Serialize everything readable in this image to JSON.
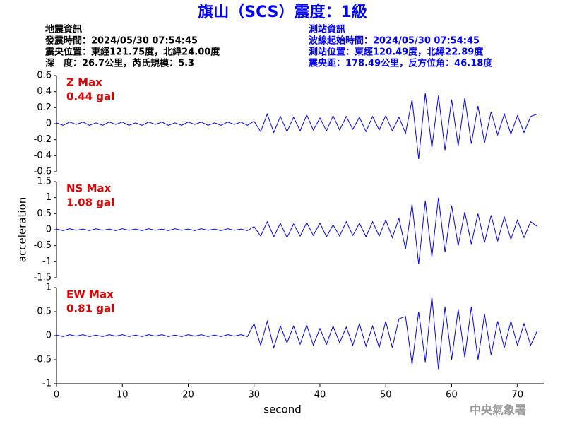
{
  "title": "旗山（SCS）震度：1級",
  "info_left": [
    "地震資訊",
    "發震時間：2024/05/30 07:54:45",
    "震央位置：東經121.75度，北緯24.00度",
    "深　度：26.7公里，芮氏規模：5.3"
  ],
  "info_right": [
    "測站資訊",
    "波線起始時間：2024/05/30 07:54:45",
    "測站位置：東經120.49度，北緯22.89度",
    "震央距：178.49公里，反方位角：46.18度"
  ],
  "footer": "中央氣象署",
  "chart_data": [
    {
      "type": "line",
      "annotations": [
        "Z Max",
        "0.44 gal"
      ],
      "xlim": [
        0,
        74
      ],
      "ylim": [
        -0.6,
        0.6
      ],
      "yticks": [
        0.6,
        0.4,
        0.2,
        0,
        -0.2,
        -0.4,
        -0.6
      ],
      "color": "#0000ff",
      "x": [
        0,
        1,
        2,
        3,
        4,
        5,
        6,
        7,
        8,
        9,
        10,
        11,
        12,
        13,
        14,
        15,
        16,
        17,
        18,
        19,
        20,
        21,
        22,
        23,
        24,
        25,
        26,
        27,
        28,
        29,
        30,
        31,
        32,
        33,
        34,
        35,
        36,
        37,
        38,
        39,
        40,
        41,
        42,
        43,
        44,
        45,
        46,
        47,
        48,
        49,
        50,
        51,
        52,
        53,
        54,
        55,
        56,
        57,
        58,
        59,
        60,
        61,
        62,
        63,
        64,
        65,
        66,
        67,
        68,
        69,
        70,
        71,
        72,
        73
      ],
      "values": [
        0.01,
        -0.02,
        0.02,
        -0.01,
        0.02,
        -0.02,
        0.01,
        -0.02,
        0.02,
        -0.01,
        0.02,
        -0.02,
        0.01,
        -0.02,
        0.02,
        -0.01,
        0.02,
        -0.02,
        0.01,
        -0.02,
        0.02,
        -0.01,
        0.02,
        -0.02,
        0.01,
        -0.02,
        0.02,
        -0.01,
        0.02,
        -0.02,
        0.03,
        -0.1,
        0.12,
        -0.11,
        0.09,
        -0.1,
        0.08,
        -0.09,
        0.11,
        -0.08,
        0.07,
        -0.09,
        0.1,
        -0.08,
        0.09,
        -0.07,
        0.08,
        -0.1,
        0.09,
        -0.08,
        0.1,
        -0.09,
        0.08,
        -0.12,
        0.3,
        -0.44,
        0.38,
        -0.3,
        0.35,
        -0.33,
        0.3,
        -0.28,
        0.32,
        -0.25,
        0.22,
        -0.24,
        0.15,
        -0.14,
        0.12,
        -0.13,
        0.1,
        -0.11,
        0.09,
        0.12
      ]
    },
    {
      "type": "line",
      "annotations": [
        "NS Max",
        "1.08 gal"
      ],
      "ylabel": "acceleration",
      "xlim": [
        0,
        74
      ],
      "ylim": [
        -1.5,
        1.5
      ],
      "yticks": [
        1.5,
        1,
        0.5,
        0,
        -0.5,
        -1,
        -1.5
      ],
      "color": "#0000ff",
      "x": [
        0,
        1,
        2,
        3,
        4,
        5,
        6,
        7,
        8,
        9,
        10,
        11,
        12,
        13,
        14,
        15,
        16,
        17,
        18,
        19,
        20,
        21,
        22,
        23,
        24,
        25,
        26,
        27,
        28,
        29,
        30,
        31,
        32,
        33,
        34,
        35,
        36,
        37,
        38,
        39,
        40,
        41,
        42,
        43,
        44,
        45,
        46,
        47,
        48,
        49,
        50,
        51,
        52,
        53,
        54,
        55,
        56,
        57,
        58,
        59,
        60,
        61,
        62,
        63,
        64,
        65,
        66,
        67,
        68,
        69,
        70,
        71,
        72,
        73
      ],
      "values": [
        0.02,
        -0.03,
        0.03,
        -0.02,
        0.02,
        -0.03,
        0.03,
        -0.02,
        0.02,
        -0.03,
        0.03,
        -0.02,
        0.02,
        -0.03,
        0.03,
        -0.02,
        0.02,
        -0.03,
        0.03,
        -0.02,
        0.02,
        -0.03,
        0.03,
        -0.02,
        0.02,
        -0.03,
        0.03,
        -0.02,
        0.02,
        -0.03,
        0.1,
        -0.2,
        0.25,
        -0.22,
        0.2,
        -0.25,
        0.18,
        -0.2,
        0.22,
        -0.18,
        0.2,
        -0.22,
        0.15,
        -0.2,
        0.25,
        -0.18,
        0.2,
        -0.22,
        0.25,
        -0.2,
        0.3,
        -0.25,
        0.35,
        -0.6,
        0.8,
        -1.08,
        0.9,
        -0.85,
        1.0,
        -0.7,
        0.75,
        -0.5,
        0.55,
        -0.45,
        0.5,
        -0.4,
        0.45,
        -0.35,
        0.4,
        -0.3,
        0.3,
        -0.25,
        0.25,
        0.1
      ]
    },
    {
      "type": "line",
      "annotations": [
        "EW Max",
        "0.81 gal"
      ],
      "xlabel": "second",
      "xlim": [
        0,
        74
      ],
      "xticks": [
        0,
        10,
        20,
        30,
        40,
        50,
        60,
        70
      ],
      "ylim": [
        -1,
        1
      ],
      "yticks": [
        1,
        0.5,
        0,
        -0.5,
        -1
      ],
      "color": "#0000ff",
      "x": [
        0,
        1,
        2,
        3,
        4,
        5,
        6,
        7,
        8,
        9,
        10,
        11,
        12,
        13,
        14,
        15,
        16,
        17,
        18,
        19,
        20,
        21,
        22,
        23,
        24,
        25,
        26,
        27,
        28,
        29,
        30,
        31,
        32,
        33,
        34,
        35,
        36,
        37,
        38,
        39,
        40,
        41,
        42,
        43,
        44,
        45,
        46,
        47,
        48,
        49,
        50,
        51,
        52,
        53,
        54,
        55,
        56,
        57,
        58,
        59,
        60,
        61,
        62,
        63,
        64,
        65,
        66,
        67,
        68,
        69,
        70,
        71,
        72,
        73
      ],
      "values": [
        0.01,
        -0.02,
        0.02,
        -0.01,
        0.02,
        -0.02,
        0.01,
        -0.02,
        0.02,
        -0.01,
        0.02,
        -0.02,
        0.01,
        -0.02,
        0.02,
        -0.01,
        0.02,
        -0.02,
        0.01,
        -0.02,
        0.02,
        -0.01,
        0.02,
        -0.02,
        0.01,
        -0.02,
        0.02,
        -0.01,
        0.02,
        -0.02,
        0.25,
        -0.2,
        0.3,
        -0.25,
        0.2,
        -0.15,
        0.2,
        -0.18,
        0.22,
        -0.2,
        0.15,
        -0.18,
        0.2,
        -0.15,
        0.18,
        -0.2,
        0.25,
        -0.22,
        0.2,
        -0.25,
        0.3,
        -0.25,
        0.35,
        0.4,
        -0.6,
        0.5,
        -0.55,
        0.81,
        -0.7,
        0.6,
        -0.5,
        0.55,
        -0.45,
        0.6,
        -0.5,
        0.45,
        -0.4,
        0.3,
        -0.25,
        0.3,
        -0.2,
        0.25,
        -0.2,
        0.1
      ]
    }
  ]
}
